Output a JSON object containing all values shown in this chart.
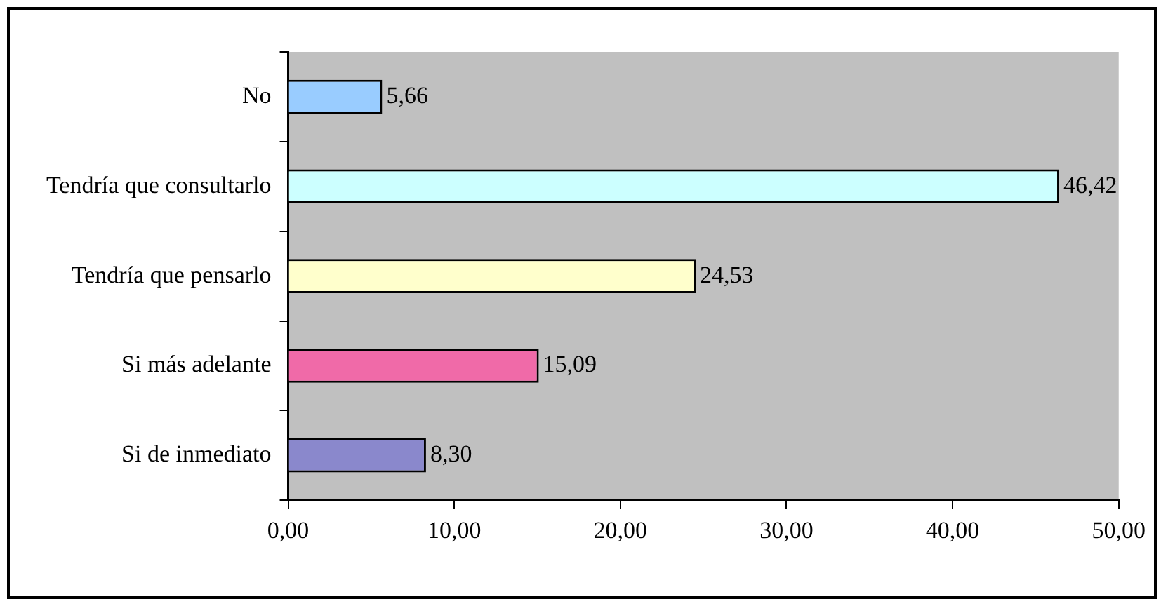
{
  "chart_data": {
    "type": "bar",
    "orientation": "horizontal",
    "categories": [
      "No",
      "Tendría que consultarlo",
      "Tendría que pensarlo",
      "Si más adelante",
      "Si de inmediato"
    ],
    "values": [
      5.66,
      46.42,
      24.53,
      15.09,
      8.3
    ],
    "colors": [
      "#99ccff",
      "#ccffff",
      "#ffffcc",
      "#f06aa8",
      "#8a88cc"
    ],
    "value_labels": [
      "5,66",
      "46,42",
      "24,53",
      "15,09",
      "8,30"
    ],
    "xlim": [
      0,
      50
    ],
    "xticks": [
      {
        "value": 0,
        "label": "0,00"
      },
      {
        "value": 10,
        "label": "10,00"
      },
      {
        "value": 20,
        "label": "20,00"
      },
      {
        "value": 30,
        "label": "30,00"
      },
      {
        "value": 40,
        "label": "40,00"
      },
      {
        "value": 50,
        "label": "50,00"
      }
    ],
    "grid": false,
    "legend": false
  }
}
